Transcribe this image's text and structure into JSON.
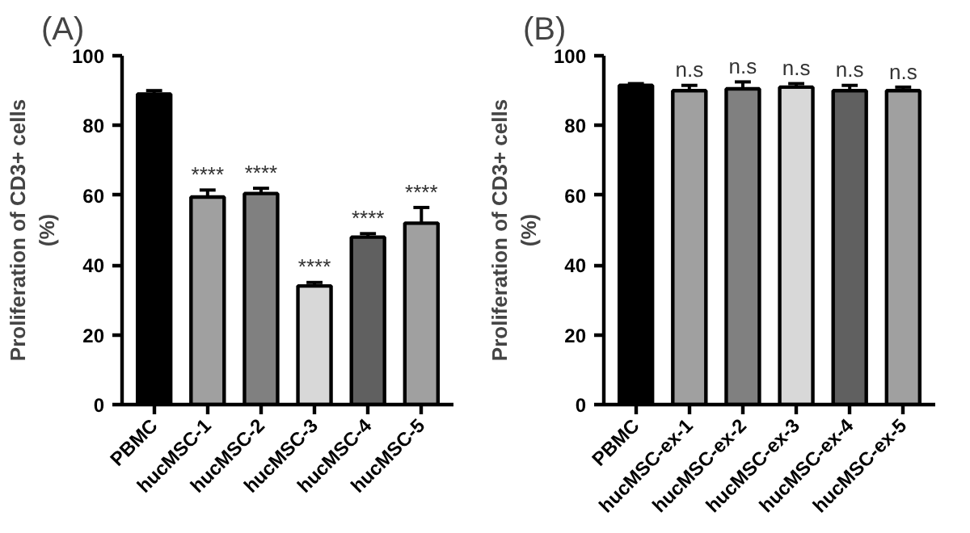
{
  "chart_data": [
    {
      "type": "bar",
      "title": "(A)",
      "ylabel": "Proliferation of CD3+ cells\n(%)",
      "categories": [
        "PBMC",
        "hucMSC-1",
        "hucMSC-2",
        "hucMSC-3",
        "hucMSC-4",
        "hucMSC-5"
      ],
      "values": [
        89,
        59.5,
        60.5,
        34,
        48,
        52
      ],
      "colors": [
        "#000000",
        "#a0a0a0",
        "#808080",
        "#d8d8d8",
        "#606060",
        "#a0a0a0"
      ],
      "errors": [
        [
          89,
          90
        ],
        [
          59.5,
          61.5
        ],
        [
          60.5,
          62
        ],
        [
          34,
          35
        ],
        [
          48,
          49
        ],
        [
          52,
          56.5
        ]
      ],
      "ylim": [
        0,
        100
      ],
      "yticks": [
        0,
        20,
        40,
        60,
        80,
        100
      ],
      "annotations": [
        {
          "text": "****",
          "x": "hucMSC-1",
          "y": 61.5
        },
        {
          "text": "****",
          "x": "hucMSC-2",
          "y": 62
        },
        {
          "text": "****",
          "x": "hucMSC-3",
          "y": 35
        },
        {
          "text": "****",
          "x": "hucMSC-4",
          "y": 49
        },
        {
          "text": "****",
          "x": "hucMSC-5",
          "y": 56.5
        }
      ]
    },
    {
      "type": "bar",
      "title": "(B)",
      "ylabel": "Proliferation of CD3+ cells\n(%)",
      "categories": [
        "PBMC",
        "hucMSC-ex-1",
        "hucMSC-ex-2",
        "hucMSC-ex-3",
        "hucMSC-ex-4",
        "hucMSC-ex-5"
      ],
      "values": [
        91.5,
        90,
        90.5,
        91,
        90,
        90
      ],
      "colors": [
        "#000000",
        "#a0a0a0",
        "#808080",
        "#d8d8d8",
        "#606060",
        "#a0a0a0"
      ],
      "errors": [
        [
          91.5,
          92
        ],
        [
          90,
          91.5
        ],
        [
          90.5,
          92.5
        ],
        [
          91,
          92
        ],
        [
          90,
          91.5
        ],
        [
          90,
          91
        ]
      ],
      "ylim": [
        0,
        100
      ],
      "yticks": [
        0,
        20,
        40,
        60,
        80,
        100
      ],
      "annotations": [
        {
          "text": "n.s",
          "x": "hucMSC-ex-1",
          "y": 91.5
        },
        {
          "text": "n.s",
          "x": "hucMSC-ex-2",
          "y": 92.5
        },
        {
          "text": "n.s",
          "x": "hucMSC-ex-3",
          "y": 92
        },
        {
          "text": "n.s",
          "x": "hucMSC-ex-4",
          "y": 91.5
        },
        {
          "text": "n.s",
          "x": "hucMSC-ex-5",
          "y": 91
        }
      ]
    }
  ]
}
